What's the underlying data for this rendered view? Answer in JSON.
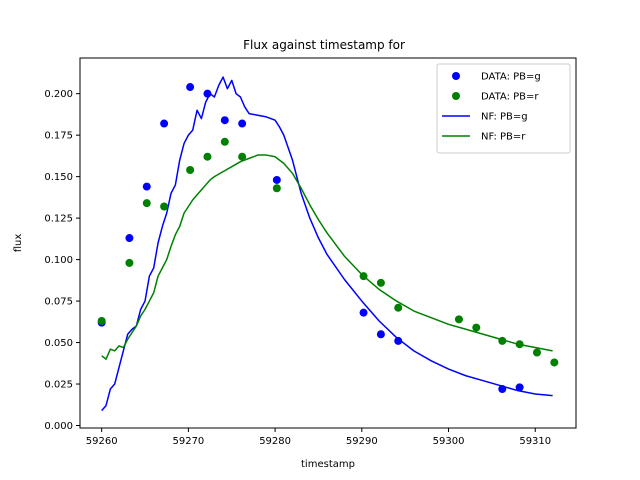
{
  "chart_data": {
    "type": "scatter",
    "title": "Flux against timestamp for",
    "xlabel": "timestamp",
    "ylabel": "flux",
    "xlim": [
      59257.5,
      59314.7
    ],
    "ylim": [
      -0.0015,
      0.2215
    ],
    "xticks": [
      59260,
      59270,
      59280,
      59290,
      59300,
      59310
    ],
    "yticks": [
      0.0,
      0.025,
      0.05,
      0.075,
      0.1,
      0.125,
      0.15,
      0.175,
      0.2
    ],
    "ytick_labels": [
      "0.000",
      "0.025",
      "0.050",
      "0.075",
      "0.100",
      "0.125",
      "0.150",
      "0.175",
      "0.200"
    ],
    "grid": false,
    "legend_position": "upper right",
    "colors": {
      "g": "#0000ff",
      "r": "#008000"
    },
    "series": [
      {
        "name": "DATA: PB=g",
        "kind": "points",
        "color": "#0000ff",
        "points": [
          [
            59260.0,
            0.062
          ],
          [
            59263.2,
            0.113
          ],
          [
            59265.2,
            0.144
          ],
          [
            59267.2,
            0.182
          ],
          [
            59270.2,
            0.204
          ],
          [
            59272.2,
            0.2
          ],
          [
            59274.2,
            0.184
          ],
          [
            59276.2,
            0.182
          ],
          [
            59280.2,
            0.148
          ],
          [
            59290.2,
            0.068
          ],
          [
            59292.2,
            0.055
          ],
          [
            59294.2,
            0.051
          ],
          [
            59306.2,
            0.022
          ],
          [
            59308.2,
            0.023
          ]
        ]
      },
      {
        "name": "DATA: PB=r",
        "kind": "points",
        "color": "#008000",
        "points": [
          [
            59260.0,
            0.063
          ],
          [
            59263.2,
            0.098
          ],
          [
            59265.2,
            0.134
          ],
          [
            59267.2,
            0.132
          ],
          [
            59270.2,
            0.154
          ],
          [
            59272.2,
            0.162
          ],
          [
            59274.2,
            0.171
          ],
          [
            59276.2,
            0.162
          ],
          [
            59280.2,
            0.143
          ],
          [
            59290.2,
            0.09
          ],
          [
            59292.2,
            0.086
          ],
          [
            59294.2,
            0.071
          ],
          [
            59301.2,
            0.064
          ],
          [
            59303.2,
            0.059
          ],
          [
            59306.2,
            0.051
          ],
          [
            59308.2,
            0.049
          ],
          [
            59310.2,
            0.044
          ],
          [
            59312.2,
            0.038
          ]
        ]
      },
      {
        "name": "NF: PB=g",
        "kind": "line",
        "color": "#0000ff",
        "points": [
          [
            59260.0,
            0.009
          ],
          [
            59260.5,
            0.012
          ],
          [
            59261.0,
            0.022
          ],
          [
            59261.5,
            0.025
          ],
          [
            59262.0,
            0.035
          ],
          [
            59262.5,
            0.045
          ],
          [
            59263.0,
            0.055
          ],
          [
            59263.5,
            0.058
          ],
          [
            59264.0,
            0.06
          ],
          [
            59264.5,
            0.07
          ],
          [
            59265.0,
            0.075
          ],
          [
            59265.5,
            0.09
          ],
          [
            59266.0,
            0.095
          ],
          [
            59266.5,
            0.11
          ],
          [
            59267.0,
            0.12
          ],
          [
            59267.5,
            0.128
          ],
          [
            59268.0,
            0.14
          ],
          [
            59268.5,
            0.145
          ],
          [
            59269.0,
            0.16
          ],
          [
            59269.5,
            0.17
          ],
          [
            59270.0,
            0.175
          ],
          [
            59270.5,
            0.178
          ],
          [
            59271.0,
            0.19
          ],
          [
            59271.5,
            0.185
          ],
          [
            59272.0,
            0.195
          ],
          [
            59272.5,
            0.2
          ],
          [
            59273.0,
            0.198
          ],
          [
            59273.5,
            0.205
          ],
          [
            59274.0,
            0.21
          ],
          [
            59274.5,
            0.203
          ],
          [
            59275.0,
            0.208
          ],
          [
            59275.5,
            0.2
          ],
          [
            59276.0,
            0.198
          ],
          [
            59276.5,
            0.192
          ],
          [
            59277.0,
            0.188
          ],
          [
            59278.0,
            0.187
          ],
          [
            59279.0,
            0.186
          ],
          [
            59280.0,
            0.184
          ],
          [
            59280.5,
            0.18
          ],
          [
            59281.0,
            0.175
          ],
          [
            59282.0,
            0.16
          ],
          [
            59283.0,
            0.14
          ],
          [
            59284.0,
            0.125
          ],
          [
            59285.0,
            0.113
          ],
          [
            59286.0,
            0.103
          ],
          [
            59288.0,
            0.088
          ],
          [
            59290.0,
            0.075
          ],
          [
            59292.0,
            0.063
          ],
          [
            59294.0,
            0.053
          ],
          [
            59296.0,
            0.045
          ],
          [
            59298.0,
            0.039
          ],
          [
            59300.0,
            0.034
          ],
          [
            59302.0,
            0.03
          ],
          [
            59304.0,
            0.027
          ],
          [
            59306.0,
            0.024
          ],
          [
            59308.0,
            0.021
          ],
          [
            59310.0,
            0.019
          ],
          [
            59312.0,
            0.018
          ]
        ]
      },
      {
        "name": "NF: PB=r",
        "kind": "line",
        "color": "#008000",
        "points": [
          [
            59260.0,
            0.042
          ],
          [
            59260.5,
            0.04
          ],
          [
            59261.0,
            0.046
          ],
          [
            59261.5,
            0.045
          ],
          [
            59262.0,
            0.048
          ],
          [
            59262.5,
            0.047
          ],
          [
            59263.0,
            0.052
          ],
          [
            59263.5,
            0.056
          ],
          [
            59264.0,
            0.06
          ],
          [
            59264.5,
            0.066
          ],
          [
            59265.0,
            0.07
          ],
          [
            59265.5,
            0.075
          ],
          [
            59266.0,
            0.08
          ],
          [
            59266.5,
            0.09
          ],
          [
            59267.0,
            0.095
          ],
          [
            59267.5,
            0.1
          ],
          [
            59268.0,
            0.108
          ],
          [
            59268.5,
            0.115
          ],
          [
            59269.0,
            0.12
          ],
          [
            59269.5,
            0.128
          ],
          [
            59270.0,
            0.132
          ],
          [
            59270.5,
            0.136
          ],
          [
            59271.0,
            0.139
          ],
          [
            59271.5,
            0.142
          ],
          [
            59272.0,
            0.145
          ],
          [
            59272.5,
            0.148
          ],
          [
            59273.0,
            0.15
          ],
          [
            59274.0,
            0.153
          ],
          [
            59275.0,
            0.156
          ],
          [
            59276.0,
            0.159
          ],
          [
            59277.0,
            0.161
          ],
          [
            59278.0,
            0.163
          ],
          [
            59279.0,
            0.163
          ],
          [
            59280.0,
            0.162
          ],
          [
            59281.0,
            0.158
          ],
          [
            59282.0,
            0.152
          ],
          [
            59283.0,
            0.143
          ],
          [
            59284.0,
            0.133
          ],
          [
            59285.0,
            0.124
          ],
          [
            59286.0,
            0.116
          ],
          [
            59288.0,
            0.102
          ],
          [
            59290.0,
            0.091
          ],
          [
            59292.0,
            0.082
          ],
          [
            59294.0,
            0.075
          ],
          [
            59296.0,
            0.069
          ],
          [
            59298.0,
            0.065
          ],
          [
            59300.0,
            0.061
          ],
          [
            59302.0,
            0.058
          ],
          [
            59304.0,
            0.055
          ],
          [
            59306.0,
            0.052
          ],
          [
            59308.0,
            0.049
          ],
          [
            59310.0,
            0.047
          ],
          [
            59312.0,
            0.045
          ]
        ]
      }
    ]
  }
}
